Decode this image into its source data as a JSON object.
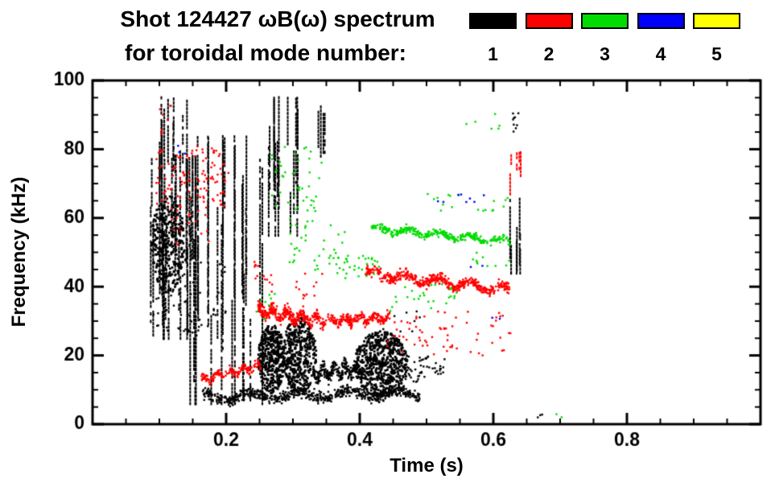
{
  "chart_data": {
    "type": "scatter",
    "title": "Shot 124427 ωB(ω) spectrum",
    "subtitle": "for toroidal mode number:",
    "xlabel": "Time (s)",
    "ylabel": "Frequency (kHz)",
    "xlim": [
      0.0,
      1.0
    ],
    "ylim": [
      0,
      100
    ],
    "xticks": [
      {
        "value": 0.2,
        "label": "0.2"
      },
      {
        "value": 0.4,
        "label": "0.4"
      },
      {
        "value": 0.6,
        "label": "0.6"
      },
      {
        "value": 0.8,
        "label": "0.8"
      }
    ],
    "yticks": [
      {
        "value": 0,
        "label": "0"
      },
      {
        "value": 20,
        "label": "20"
      },
      {
        "value": 40,
        "label": "40"
      },
      {
        "value": 60,
        "label": "60"
      },
      {
        "value": 80,
        "label": "80"
      },
      {
        "value": 100,
        "label": "100"
      }
    ],
    "minor_tick_x": 0.05,
    "minor_tick_y": 5,
    "grid": false,
    "frame_color": "#000000",
    "background_color": "#ffffff",
    "legend_position": "top-right",
    "legend": [
      {
        "label": "1",
        "color": "#000000"
      },
      {
        "label": "2",
        "color": "#ff0000"
      },
      {
        "label": "3",
        "color": "#00dc00"
      },
      {
        "label": "4",
        "color": "#0000ff"
      },
      {
        "label": "5",
        "color": "#ffff00"
      }
    ],
    "series": [
      {
        "name": "toroidal mode n=1",
        "color": "#000000",
        "clusters": [
          {
            "style": "blob",
            "t": [
              0.088,
              0.138
            ],
            "f": [
              38,
              67
            ],
            "n": 320
          },
          {
            "style": "streaks",
            "t": [
              0.085,
              0.155
            ],
            "f": [
              25,
              78
            ],
            "n": 26
          },
          {
            "style": "streaks",
            "t": [
              0.098,
              0.142
            ],
            "f": [
              55,
              95
            ],
            "n": 12
          },
          {
            "style": "streaks",
            "t": [
              0.145,
              0.255
            ],
            "f": [
              6,
              84
            ],
            "n": 26
          },
          {
            "style": "dots",
            "t": [
              0.09,
              0.2
            ],
            "f": [
              25,
              50
            ],
            "n": 70
          },
          {
            "style": "streaks",
            "t": [
              0.258,
              0.308
            ],
            "f": [
              55,
              95
            ],
            "n": 16
          },
          {
            "style": "streaks",
            "t": [
              0.338,
              0.352
            ],
            "f": [
              78,
              94
            ],
            "n": 4
          },
          {
            "style": "band",
            "t": [
              0.165,
              0.49
            ],
            "f": [
              8,
              9
            ],
            "spread": 1.6,
            "n": 650
          },
          {
            "style": "blob",
            "t": [
              0.248,
              0.288
            ],
            "f": [
              9,
              29
            ],
            "n": 380
          },
          {
            "style": "blob",
            "t": [
              0.284,
              0.335
            ],
            "f": [
              9,
              31
            ],
            "n": 420
          },
          {
            "style": "band",
            "t": [
              0.33,
              0.405
            ],
            "f": [
              15,
              16
            ],
            "spread": 2.2,
            "n": 260
          },
          {
            "style": "blob",
            "t": [
              0.392,
              0.472
            ],
            "f": [
              8,
              27
            ],
            "n": 600
          },
          {
            "style": "dots",
            "t": [
              0.468,
              0.505
            ],
            "f": [
              12,
              20
            ],
            "n": 40
          },
          {
            "style": "dots",
            "t": [
              0.505,
              0.53
            ],
            "f": [
              14,
              19
            ],
            "n": 14
          },
          {
            "style": "streaks",
            "t": [
              0.625,
              0.655
            ],
            "f": [
              44,
              66
            ],
            "n": 7
          },
          {
            "style": "dots",
            "t": [
              0.625,
              0.645
            ],
            "f": [
              83,
              91
            ],
            "n": 9
          },
          {
            "style": "dots",
            "t": [
              0.66,
              0.675
            ],
            "f": [
              1,
              3
            ],
            "n": 3
          },
          {
            "style": "dots",
            "t": [
              0.43,
              0.5
            ],
            "f": [
              26,
              33
            ],
            "n": 12
          }
        ]
      },
      {
        "name": "toroidal mode n=2",
        "color": "#ff0000",
        "clusters": [
          {
            "style": "dots",
            "t": [
              0.095,
              0.205
            ],
            "f": [
              63,
              81
            ],
            "n": 110
          },
          {
            "style": "dots",
            "t": [
              0.1,
              0.118
            ],
            "f": [
              84,
              93
            ],
            "n": 8
          },
          {
            "style": "dots",
            "t": [
              0.118,
              0.175
            ],
            "f": [
              52,
              63
            ],
            "n": 18
          },
          {
            "style": "band",
            "t": [
              0.163,
              0.252
            ],
            "f": [
              13,
              17
            ],
            "spread": 1.2,
            "n": 160
          },
          {
            "style": "band",
            "t": [
              0.248,
              0.345
            ],
            "f": [
              33,
              30
            ],
            "spread": 1.8,
            "n": 330
          },
          {
            "style": "band",
            "t": [
              0.345,
              0.445
            ],
            "f": [
              30,
              31
            ],
            "spread": 1.4,
            "n": 220
          },
          {
            "style": "band",
            "t": [
              0.408,
              0.625
            ],
            "f": [
              44,
              39
            ],
            "spread": 1.5,
            "n": 480
          },
          {
            "style": "dots",
            "t": [
              0.24,
              0.275
            ],
            "f": [
              38,
              48
            ],
            "n": 14
          },
          {
            "style": "dots",
            "t": [
              0.3,
              0.345
            ],
            "f": [
              36,
              44
            ],
            "n": 12
          },
          {
            "style": "dots",
            "t": [
              0.44,
              0.63
            ],
            "f": [
              20,
              33
            ],
            "n": 65
          },
          {
            "style": "streaks",
            "t": [
              0.625,
              0.642
            ],
            "f": [
              67,
              79
            ],
            "n": 5
          }
        ]
      },
      {
        "name": "toroidal mode n=3",
        "color": "#00dc00",
        "clusters": [
          {
            "style": "dots",
            "t": [
              0.268,
              0.345
            ],
            "f": [
              62,
              81
            ],
            "n": 42
          },
          {
            "style": "dots",
            "t": [
              0.295,
              0.385
            ],
            "f": [
              44,
              61
            ],
            "n": 38
          },
          {
            "style": "band",
            "t": [
              0.418,
              0.625
            ],
            "f": [
              57,
              53
            ],
            "spread": 1.1,
            "n": 330
          },
          {
            "style": "dots",
            "t": [
              0.35,
              0.43
            ],
            "f": [
              42,
              50
            ],
            "n": 30
          },
          {
            "style": "dots",
            "t": [
              0.44,
              0.545
            ],
            "f": [
              32,
              41
            ],
            "n": 26
          },
          {
            "style": "dots",
            "t": [
              0.5,
              0.625
            ],
            "f": [
              62,
              67
            ],
            "n": 18
          },
          {
            "style": "dots",
            "t": [
              0.55,
              0.61
            ],
            "f": [
              85,
              92
            ],
            "n": 6
          },
          {
            "style": "dots",
            "t": [
              0.56,
              0.625
            ],
            "f": [
              46,
              50
            ],
            "n": 10
          },
          {
            "style": "dots",
            "t": [
              0.245,
              0.28
            ],
            "f": [
              30,
              38
            ],
            "n": 8
          },
          {
            "style": "dots",
            "t": [
              0.69,
              0.705
            ],
            "f": [
              1,
              3
            ],
            "n": 2
          }
        ]
      },
      {
        "name": "toroidal mode n=4",
        "color": "#0000ff",
        "clusters": [
          {
            "style": "dots",
            "t": [
              0.125,
              0.14
            ],
            "f": [
              78,
              82
            ],
            "n": 3
          },
          {
            "style": "dots",
            "t": [
              0.515,
              0.59
            ],
            "f": [
              63,
              68
            ],
            "n": 8
          },
          {
            "style": "dots",
            "t": [
              0.555,
              0.585
            ],
            "f": [
              45,
              47
            ],
            "n": 2
          },
          {
            "style": "dots",
            "t": [
              0.598,
              0.615
            ],
            "f": [
              29,
              32
            ],
            "n": 2
          }
        ]
      },
      {
        "name": "toroidal mode n=5",
        "color": "#ffff00",
        "clusters": []
      }
    ]
  }
}
